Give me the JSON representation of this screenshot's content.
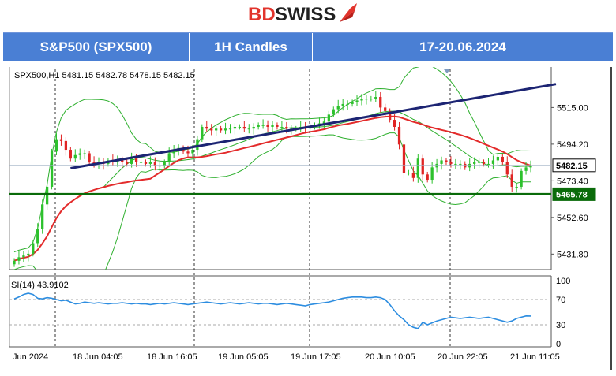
{
  "brand": {
    "name_bold": "BD",
    "name_rest": "SWISS",
    "accent": "#e2342c"
  },
  "header": {
    "instrument": "S&P500 (SPX500)",
    "timeframe": "1H Candles",
    "period": "17-20.06.2024"
  },
  "chart_data": {
    "type": "candlestick",
    "symbol_line": "SPX500,H1  5481.15 5482.78 5478.15 5482.15",
    "ohlc_last": [
      5481.15,
      5482.78,
      5478.15,
      5482.15
    ],
    "y_range": [
      5423,
      5538
    ],
    "y_ticks": [
      "5515.00",
      "5494.20",
      "5473.40",
      "5452.60",
      "5431.80"
    ],
    "x_labels": [
      "Jun 2024",
      "18 Jun 04:05",
      "18 Jun 16:05",
      "19 Jun 05:05",
      "19 Jun 17:05",
      "20 Jun 10:05",
      "20 Jun 22:05",
      "21 Jun 11:05"
    ],
    "price_tags": [
      {
        "label": "5482.15",
        "value": 5482.15,
        "style": "current"
      },
      {
        "label": "5465.78",
        "value": 5465.78,
        "style": "support"
      }
    ],
    "support_line": {
      "value": 5465.78,
      "color": "#0a6b0a"
    },
    "trendline": {
      "from": [
        12,
        5480.5
      ],
      "to": [
        111,
        5527
      ],
      "color": "#1c2473"
    },
    "moving_average_color": "#e32b2b",
    "bollinger_color": "#2fb02f",
    "bull_color": "#2cc12c",
    "bear_color": "#e02424",
    "close": [
      5428,
      5430,
      5431,
      5432,
      5438,
      5446,
      5460,
      5470,
      5490,
      5497,
      5496,
      5491,
      5486,
      5488,
      5489,
      5489,
      5484,
      5483,
      5484,
      5483,
      5485,
      5484,
      5485,
      5484,
      5483,
      5486,
      5484,
      5484,
      5483,
      5484,
      5482,
      5482,
      5484,
      5489,
      5491,
      5492,
      5490,
      5489,
      5491,
      5497,
      5504,
      5503,
      5502,
      5503,
      5502,
      5503,
      5503,
      5504,
      5504,
      5503,
      5503,
      5504,
      5505,
      5505,
      5504,
      5505,
      5504,
      5504,
      5503,
      5503,
      5503,
      5504,
      5503,
      5504,
      5505,
      5506,
      5507,
      5511,
      5514,
      5516,
      5517,
      5517,
      5518,
      5519,
      5520,
      5520,
      5520,
      5521,
      5515,
      5513,
      5508,
      5504,
      5494,
      5478,
      5478,
      5475,
      5486,
      5477,
      5474,
      5481,
      5483,
      5485,
      5484,
      5483,
      5483,
      5483,
      5481,
      5483,
      5484,
      5484,
      5483,
      5483,
      5485,
      5487,
      5484,
      5477,
      5470,
      5470,
      5479,
      5481,
      5482.15
    ],
    "rsi": {
      "label": "SI(14) 43.9102",
      "ticks": [
        "100",
        "70",
        "30",
        "0"
      ],
      "levels": [
        70,
        30
      ],
      "line_color": "#2d8de0",
      "values": [
        71,
        74,
        78,
        80,
        78,
        72,
        71,
        73,
        72,
        70,
        68,
        69,
        66,
        63,
        64,
        66,
        65,
        64,
        65,
        64,
        63,
        64,
        64,
        65,
        64,
        63,
        64,
        63,
        63,
        62,
        63,
        64,
        63,
        64,
        65,
        64,
        63,
        62,
        63,
        64,
        65,
        66,
        65,
        64,
        63,
        64,
        65,
        64,
        63,
        64,
        65,
        64,
        63,
        64,
        64,
        63,
        62,
        63,
        64,
        63,
        62,
        61,
        60,
        62,
        63,
        64,
        65,
        66,
        68,
        70,
        72,
        73,
        74,
        74,
        74,
        73,
        73,
        74,
        73,
        70,
        62,
        52,
        44,
        38,
        30,
        26,
        24,
        34,
        30,
        33,
        36,
        38,
        40,
        42,
        41,
        40,
        41,
        42,
        41,
        40,
        41,
        42,
        40,
        38,
        36,
        34,
        36,
        40,
        42,
        44,
        43.9
      ]
    }
  }
}
